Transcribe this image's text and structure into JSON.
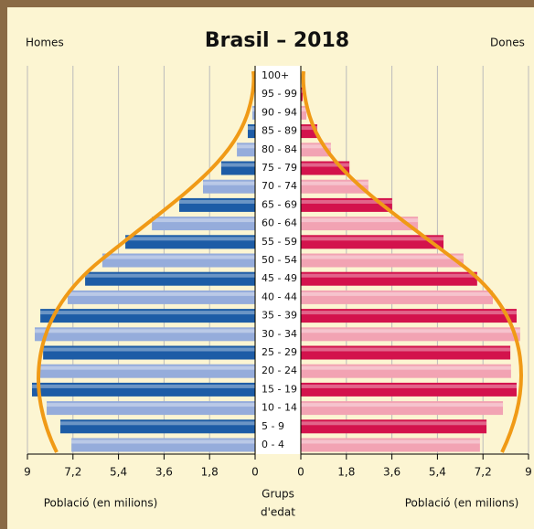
{
  "chart_data": {
    "type": "pyramid",
    "title": "Brasil – 2018",
    "categories": [
      "0 - 4",
      "5 - 9",
      "10 - 14",
      "15 - 19",
      "20 - 24",
      "25 - 29",
      "30 - 34",
      "35 - 39",
      "40 - 44",
      "45 - 49",
      "50 - 54",
      "55 - 59",
      "60 - 64",
      "65 - 69",
      "70 - 74",
      "75 - 79",
      "80 - 84",
      "85 - 89",
      "90 - 94",
      "95 - 99",
      "100+"
    ],
    "category_axis_label": [
      "Grups",
      "d'edat"
    ],
    "series": [
      {
        "name": "Homes",
        "side": "left",
        "colors": [
          "#95acdb",
          "#1d5ca6"
        ],
        "values": [
          7.26,
          7.7,
          8.24,
          8.82,
          8.53,
          8.38,
          8.71,
          8.49,
          7.41,
          6.72,
          6.04,
          5.13,
          4.08,
          3.0,
          2.06,
          1.34,
          0.72,
          0.29,
          0.11,
          0.02,
          0
        ],
        "axis_label": "Població (en milions)",
        "xlim": [
          0,
          9
        ],
        "xticks": [
          {
            "value": 9,
            "label": "9"
          },
          {
            "value": 7.2,
            "label": "7,2"
          },
          {
            "value": 5.4,
            "label": "5,4"
          },
          {
            "value": 3.6,
            "label": "3,6"
          },
          {
            "value": 1.8,
            "label": "1,8"
          },
          {
            "value": 0,
            "label": "0"
          }
        ]
      },
      {
        "name": "Dones",
        "side": "right",
        "colors": [
          "#f2a3b3",
          "#d3124c"
        ],
        "values": [
          7.08,
          7.34,
          7.99,
          8.53,
          8.31,
          8.28,
          8.67,
          8.53,
          7.59,
          6.97,
          6.43,
          5.64,
          4.63,
          3.61,
          2.67,
          1.92,
          1.19,
          0.65,
          0.22,
          0.07,
          0.01
        ],
        "axis_label": "Població (en milions)",
        "xlim": [
          0,
          9
        ],
        "xticks": [
          {
            "value": 0,
            "label": "0"
          },
          {
            "value": 1.8,
            "label": "1,8"
          },
          {
            "value": 3.6,
            "label": "3,6"
          },
          {
            "value": 5.4,
            "label": "5,4"
          },
          {
            "value": 7.2,
            "label": "7,2"
          },
          {
            "value": 9,
            "label": "9"
          }
        ]
      }
    ],
    "grid": true
  }
}
